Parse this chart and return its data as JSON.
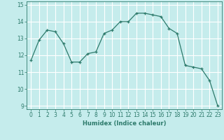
{
  "title": "",
  "xlabel": "Humidex (Indice chaleur)",
  "x": [
    0,
    1,
    2,
    3,
    4,
    5,
    6,
    7,
    8,
    9,
    10,
    11,
    12,
    13,
    14,
    15,
    16,
    17,
    18,
    19,
    20,
    21,
    22,
    23
  ],
  "y": [
    11.7,
    12.9,
    13.5,
    13.4,
    12.7,
    11.6,
    11.6,
    12.1,
    12.2,
    13.3,
    13.5,
    14.0,
    14.0,
    14.5,
    14.5,
    14.4,
    14.3,
    13.6,
    13.3,
    11.4,
    11.3,
    11.2,
    10.5,
    9.0
  ],
  "line_color": "#2d7a6b",
  "marker": "+",
  "marker_size": 3,
  "marker_linewidth": 0.9,
  "bg_color": "#c5ecec",
  "grid_color": "#ffffff",
  "tick_color": "#2d7a6b",
  "label_color": "#2d7a6b",
  "ylim": [
    8.8,
    15.2
  ],
  "yticks": [
    9,
    10,
    11,
    12,
    13,
    14,
    15
  ],
  "xlim": [
    -0.5,
    23.5
  ],
  "xticks": [
    0,
    1,
    2,
    3,
    4,
    5,
    6,
    7,
    8,
    9,
    10,
    11,
    12,
    13,
    14,
    15,
    16,
    17,
    18,
    19,
    20,
    21,
    22,
    23
  ],
  "axis_fontsize": 6.0,
  "tick_fontsize": 5.5,
  "line_width": 0.9
}
